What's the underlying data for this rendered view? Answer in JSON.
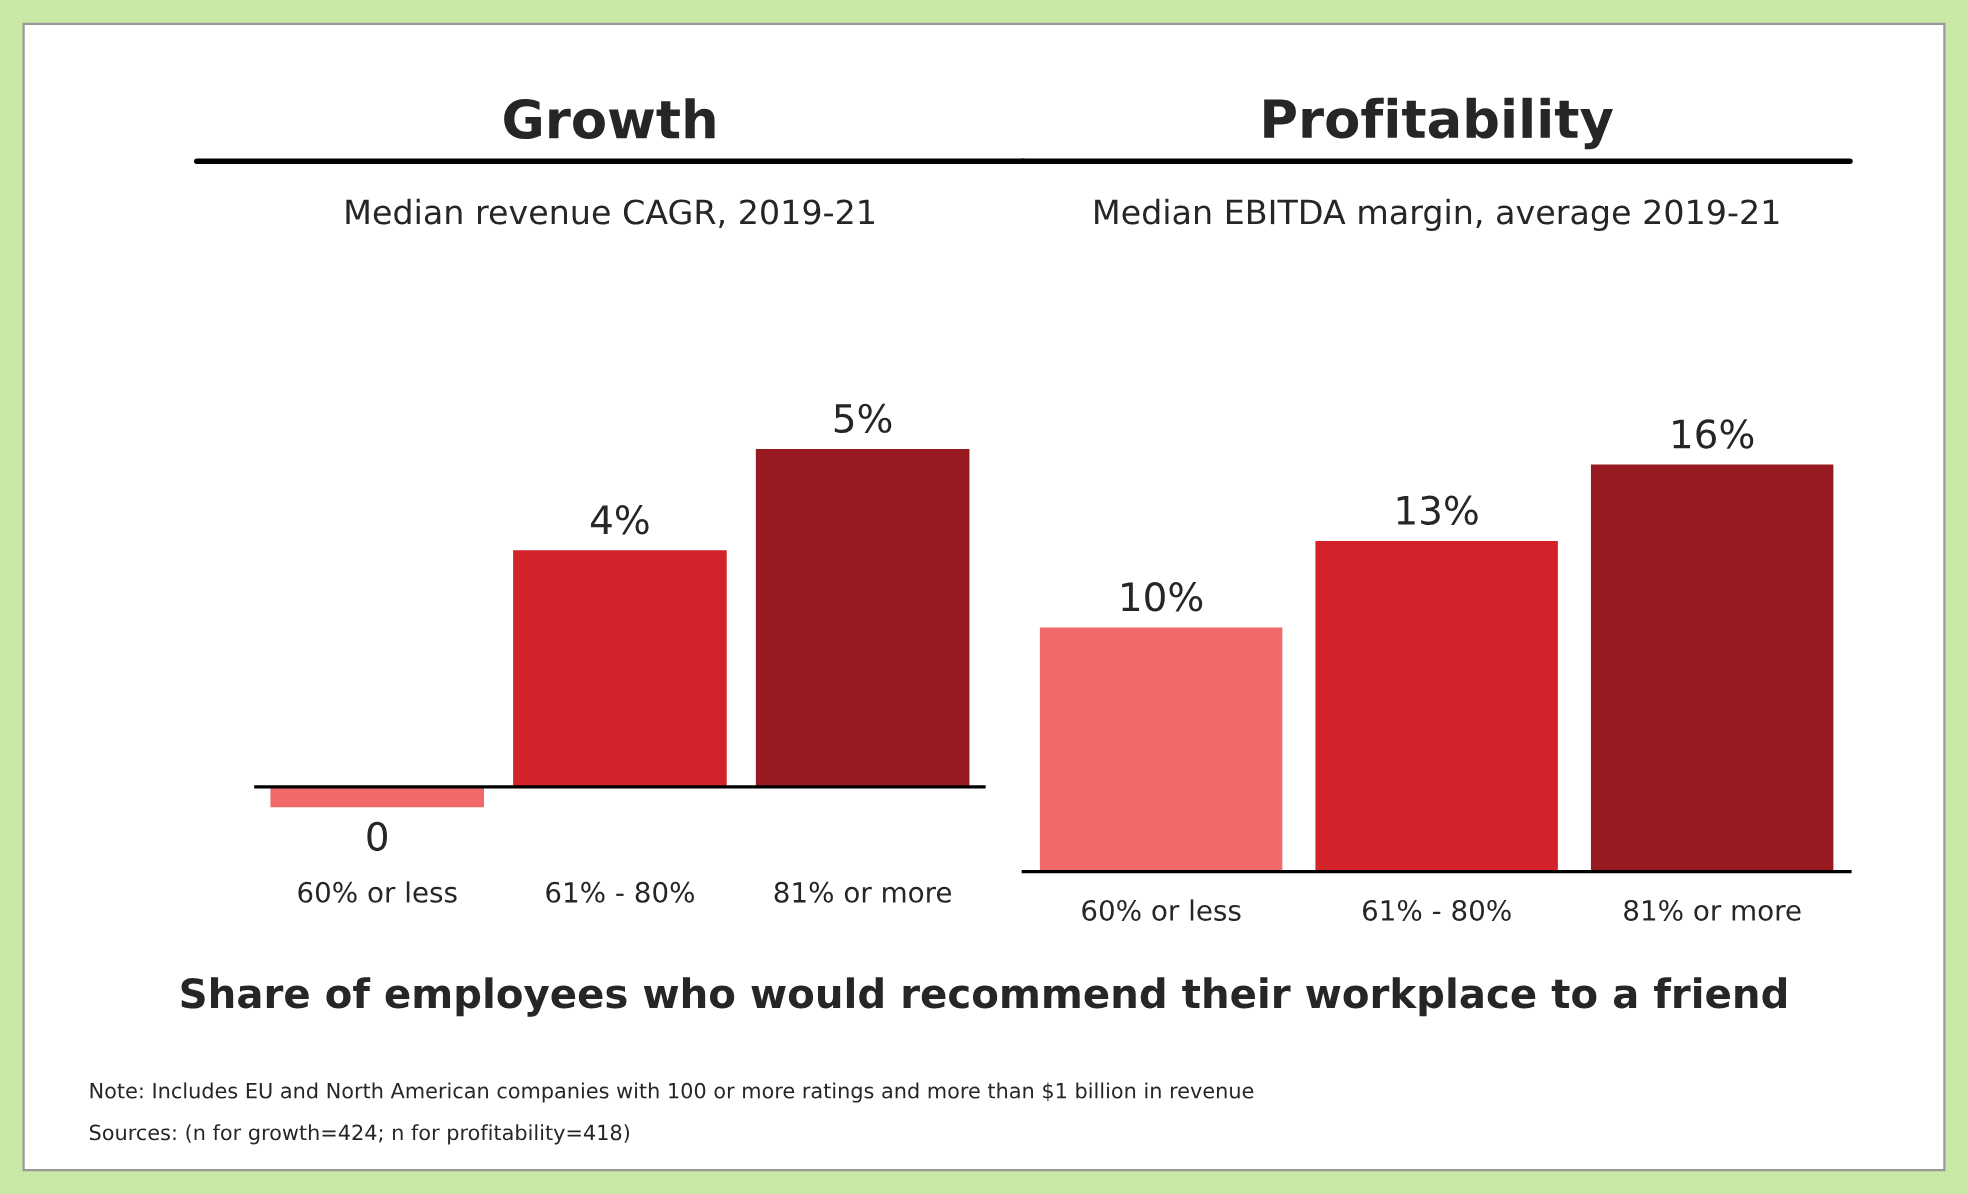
{
  "chart_data": [
    {
      "type": "bar",
      "title": "Growth",
      "subtitle": "Median revenue CAGR, 2019-21",
      "categories": [
        "60% or less",
        "61% - 80%",
        "81% or more"
      ],
      "values": [
        -0.3,
        3.5,
        5
      ],
      "colors": [
        "#f06a6a",
        "#d3222a",
        "#961a1f"
      ],
      "value_labels": [
        "0",
        "4%",
        "5%"
      ],
      "tick_labels": "x",
      "grid": false,
      "annotations": [
        "Share of employees who would recommend their workplace to a friend",
        "Note: Includes EU and North American companies with 100 or more ratings and more than $1 billion in revenue",
        "Sources: (n for growth=424; n for profitability=418)"
      ]
    },
    {
      "type": "bar",
      "title": "Profitability",
      "subtitle": "Median EBITDA margin, average 2019-21",
      "categories": [
        "60% or less",
        "61% - 80%",
        "81% or more"
      ],
      "values": [
        9.6,
        13,
        16
      ],
      "colors": [
        "#f06a6a",
        "#d3222a",
        "#961a1f"
      ],
      "value_labels": [
        "10%",
        "13%",
        "16%"
      ],
      "tick_labels": "x",
      "grid": false
    }
  ]
}
